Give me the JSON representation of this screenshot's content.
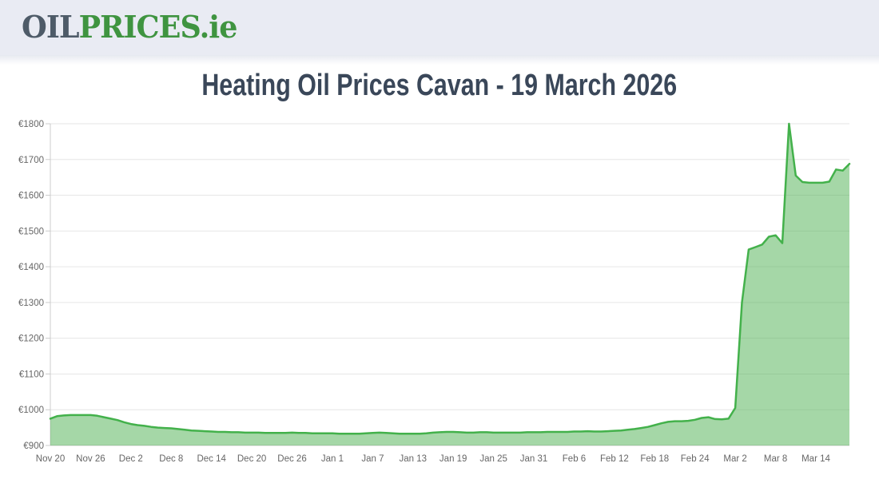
{
  "header": {
    "logo_part_gray": "OIL",
    "logo_part_green": "PRICES",
    "logo_part_suffix": ".ie"
  },
  "title": "Heating Oil Prices Cavan - 19 March 2026",
  "colors": {
    "header_bg": "#e9ebf3",
    "logo_gray": "#4e5b68",
    "logo_green": "#3f9440",
    "title_text": "#3a4759",
    "line_green": "#43b14b",
    "fill_green": "rgba(76,175,80,0.5)",
    "grid_line": "#e6e6e6",
    "axis_line": "#cccccc",
    "axis_label": "#666666"
  },
  "chart_data": {
    "type": "area",
    "title": "Heating Oil Prices Cavan - 19 March 2026",
    "x_tick_labels": [
      "Nov 20",
      "Nov 26",
      "Dec 2",
      "Dec 8",
      "Dec 14",
      "Dec 20",
      "Dec 26",
      "Jan 1",
      "Jan 7",
      "Jan 13",
      "Jan 19",
      "Jan 25",
      "Jan 31",
      "Feb 6",
      "Feb 12",
      "Feb 18",
      "Feb 24",
      "Mar 2",
      "Mar 8",
      "Mar 14"
    ],
    "x_tick_interval_days": 6,
    "x_start_label": "Nov 20",
    "x_end_label": "Mar 19",
    "sampling": "daily",
    "ylim": [
      900,
      1800
    ],
    "y_tick_step": 100,
    "y_tick_prefix": "€",
    "grid": true,
    "legend_visible": false,
    "values": [
      975,
      982,
      984,
      985,
      985,
      985,
      985,
      983,
      979,
      975,
      971,
      965,
      960,
      957,
      955,
      952,
      950,
      949,
      948,
      946,
      944,
      942,
      941,
      940,
      939,
      938,
      938,
      937,
      937,
      936,
      936,
      936,
      935,
      935,
      935,
      935,
      936,
      935,
      935,
      934,
      934,
      934,
      934,
      933,
      933,
      933,
      933,
      934,
      935,
      936,
      935,
      934,
      933,
      933,
      933,
      933,
      934,
      936,
      937,
      938,
      938,
      937,
      936,
      936,
      937,
      937,
      936,
      936,
      936,
      936,
      936,
      937,
      937,
      937,
      938,
      938,
      938,
      938,
      939,
      939,
      940,
      939,
      939,
      940,
      941,
      942,
      944,
      946,
      949,
      952,
      957,
      962,
      966,
      968,
      968,
      969,
      972,
      977,
      979,
      974,
      973,
      975,
      1005,
      1300,
      1448,
      1455,
      1462,
      1484,
      1488,
      1466,
      1800,
      1655,
      1637,
      1635,
      1635,
      1635,
      1638,
      1672,
      1669,
      1688
    ]
  }
}
